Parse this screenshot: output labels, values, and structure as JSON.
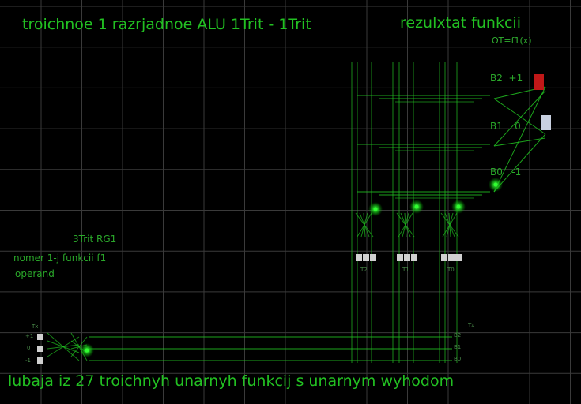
{
  "title": "troichnoe 1 razrjadnoe ALU 1Trit - 1Trit",
  "result_title": "rezulxtat funkcii",
  "result_formula": "OT=f1(x)",
  "register_label": "3Trit RG1",
  "function_label": "nomer 1-j funkcii f1",
  "operand_label": "operand",
  "footer": "lubaja iz 27 troichnyh unarnyh funkcij s unarnym wyhodom",
  "outputs": [
    {
      "label": "B2",
      "value": "+1"
    },
    {
      "label": "B1",
      "value": "0"
    },
    {
      "label": "B0",
      "value": "-1"
    }
  ],
  "trit_selectors": [
    "T2",
    "T1",
    "T0"
  ],
  "input_label": "Tx",
  "input_levels": [
    "+1",
    "0",
    "-1"
  ],
  "bus_label": "Tx",
  "bus_lines": [
    "B2",
    "B1",
    "B0"
  ],
  "colors": {
    "wire": "#22c022",
    "grid": "#3a3a3a",
    "led_red": "#c01818",
    "led_white": "#c8d0e0",
    "active": "#30ff30"
  }
}
